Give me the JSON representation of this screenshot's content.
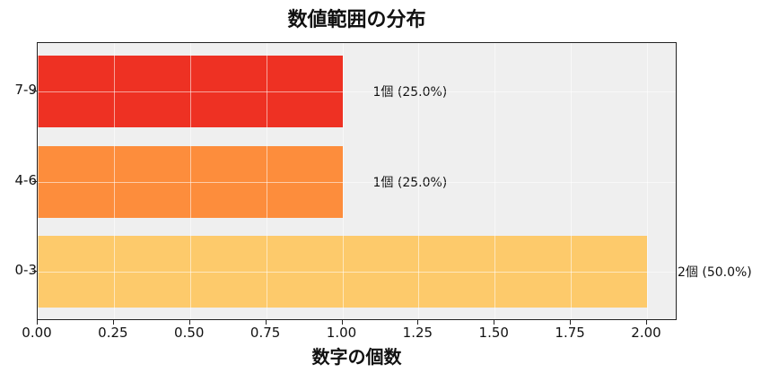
{
  "chart_data": {
    "type": "bar",
    "orientation": "horizontal",
    "title": "数値範囲の分布",
    "xlabel": "数字の個数",
    "ylabel": "",
    "categories": [
      "0-3",
      "4-6",
      "7-9"
    ],
    "values": [
      2,
      1,
      1
    ],
    "labels": [
      "2個 (50.0%)",
      "1個 (25.0%)",
      "1個 (25.0%)"
    ],
    "colors": [
      "#fdca6b",
      "#fd8d3c",
      "#ee3123"
    ],
    "xlim": [
      0,
      2.1
    ],
    "xticks": [
      "0.00",
      "0.25",
      "0.50",
      "0.75",
      "1.00",
      "1.25",
      "1.50",
      "1.75",
      "2.00"
    ],
    "grid": true,
    "background": "#efefef"
  }
}
